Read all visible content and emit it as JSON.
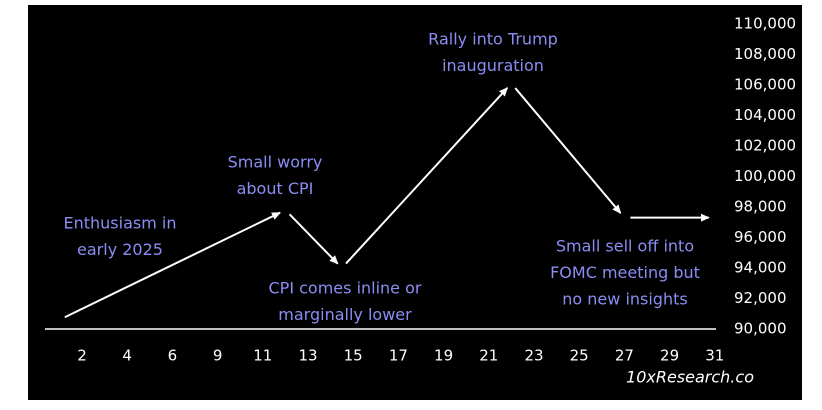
{
  "chart_data": {
    "type": "line",
    "categories": [
      "2",
      "4",
      "6",
      "9",
      "11",
      "13",
      "15",
      "17",
      "19",
      "21",
      "23",
      "25",
      "27",
      "29",
      "31"
    ],
    "series": [
      {
        "color": "#ffffff",
        "x": [
          1,
          12,
          14.5,
          22,
          27,
          31
        ],
        "values": [
          90600,
          97800,
          94000,
          106100,
          97300,
          97300
        ]
      }
    ],
    "ylim": [
      90000,
      110000
    ],
    "yticks": [
      {
        "value": 90000,
        "label": "90,000"
      },
      {
        "value": 92000,
        "label": "92,000"
      },
      {
        "value": 94000,
        "label": "94,000"
      },
      {
        "value": 96000,
        "label": "96,000"
      },
      {
        "value": 98000,
        "label": "98,000"
      },
      {
        "value": 100000,
        "label": "100,000"
      },
      {
        "value": 102000,
        "label": "102,000"
      },
      {
        "value": 104000,
        "label": "104,000"
      },
      {
        "value": 106000,
        "label": "106,000"
      },
      {
        "value": 108000,
        "label": "108,000"
      },
      {
        "value": 110000,
        "label": "110,000"
      }
    ],
    "annotations": [
      [
        "Enthusiasm in",
        "early 2025"
      ],
      [
        "Small worry",
        "about CPI"
      ],
      [
        "CPI comes inline or",
        "marginally lower"
      ],
      [
        "Rally into Trump",
        "inauguration"
      ],
      [
        "Small sell off into",
        "FOMC meeting but",
        "no new insights"
      ]
    ],
    "annotation_color": "#8b8df2",
    "source": "10xResearch.co"
  }
}
